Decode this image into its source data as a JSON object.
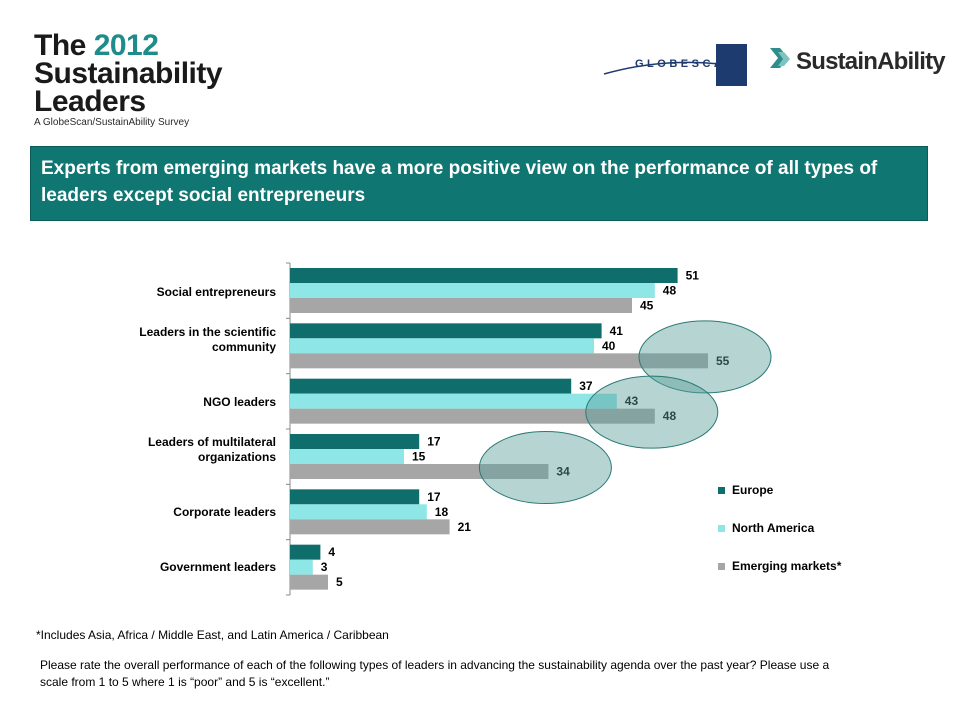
{
  "header": {
    "logo_line1_prefix": "The",
    "logo_line1_year": "2012",
    "logo_line2": "Sustainability",
    "logo_line3": "Leaders",
    "logo_subtitle": "A GlobeScan/SustainAbility Survey",
    "globescan_logo_text": "GLOBESCAN",
    "sustainability_logo_text": "SustainAbility"
  },
  "banner": {
    "text": "Experts from emerging markets have a more positive view on the performance of all types of leaders except social entrepreneurs"
  },
  "colors": {
    "europe": "#0f6e6b",
    "north_america": "#8fe6e6",
    "emerging": "#a6a6a6",
    "banner": "#0f7672",
    "highlight_ellipse": "#5d9f9c"
  },
  "chart_data": {
    "type": "bar",
    "orientation": "horizontal",
    "categories": [
      "Social entrepreneurs",
      "Leaders in the scientific community",
      "NGO leaders",
      "Leaders of multilateral organizations",
      "Corporate leaders",
      "Government leaders"
    ],
    "series": [
      {
        "name": "Europe",
        "values": [
          51,
          41,
          37,
          17,
          17,
          4
        ]
      },
      {
        "name": "North America",
        "values": [
          48,
          40,
          43,
          15,
          18,
          3
        ]
      },
      {
        "name": "Emerging markets*",
        "values": [
          45,
          55,
          48,
          34,
          21,
          5
        ]
      }
    ],
    "xlim": [
      0,
      60
    ],
    "grid": false,
    "legend_position": "right",
    "highlighted": [
      "Leaders in the scientific community",
      "NGO leaders",
      "Leaders of multilateral organizations"
    ]
  },
  "footer": {
    "footnote": "*Includes Asia, Africa / Middle East, and Latin America / Caribbean",
    "question": "Please rate the overall performance of each of the following types of leaders in advancing the sustainability agenda over the past year? Please use a scale from 1 to 5 where 1 is “poor” and 5 is “excellent.”"
  }
}
